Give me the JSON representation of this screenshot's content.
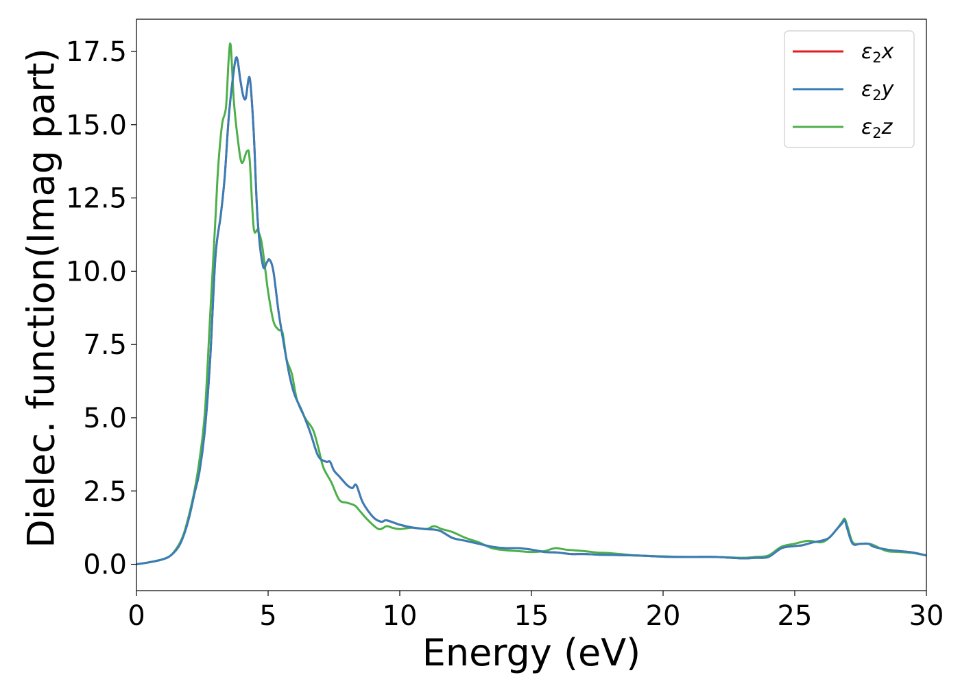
{
  "chart_data": {
    "type": "line",
    "title": "",
    "xlabel": "Energy (eV)",
    "ylabel": "Dielec. function(Imag part)",
    "xlim": [
      0,
      30
    ],
    "ylim": [
      -0.9,
      18.6
    ],
    "xticks": [
      "0",
      "5",
      "10",
      "15",
      "20",
      "25",
      "30"
    ],
    "yticks": [
      "0.0",
      "2.5",
      "5.0",
      "7.5",
      "10.0",
      "12.5",
      "15.0",
      "17.5"
    ],
    "grid": false,
    "legend_position": "top-right",
    "series": [
      {
        "name": "ε₂x",
        "legend_base": "ε",
        "legend_sub": "2",
        "legend_var": "x",
        "color": "#e41a1c",
        "x": [
          0,
          0.5,
          1.0,
          1.3,
          1.6,
          1.8,
          2.0,
          2.2,
          2.4,
          2.6,
          2.8,
          3.0,
          3.2,
          3.35,
          3.5,
          3.65,
          3.8,
          3.95,
          4.05,
          4.15,
          4.3,
          4.45,
          4.6,
          4.8,
          4.95,
          5.05,
          5.2,
          5.4,
          5.6,
          5.8,
          6.0,
          6.3,
          6.6,
          6.9,
          7.2,
          7.35,
          7.5,
          7.7,
          8.0,
          8.2,
          8.35,
          8.6,
          9.0,
          9.3,
          9.5,
          10.0,
          10.5,
          11.0,
          11.5,
          12.0,
          12.5,
          13.0,
          13.5,
          14.0,
          14.5,
          15.0,
          15.5,
          16.0,
          16.5,
          17.0,
          17.5,
          18.0,
          19.0,
          20.0,
          21.0,
          22.0,
          23.0,
          23.5,
          24.0,
          24.5,
          25.0,
          25.3,
          25.7,
          26.0,
          26.3,
          26.6,
          26.8,
          26.9,
          27.0,
          27.2,
          27.5,
          27.8,
          28.0,
          28.5,
          29.0,
          29.5,
          30.0
        ],
        "y": [
          0.0,
          0.07,
          0.17,
          0.3,
          0.6,
          1.0,
          1.6,
          2.4,
          3.2,
          4.6,
          7.0,
          10.5,
          11.9,
          13.2,
          15.2,
          16.5,
          17.3,
          16.5,
          16.0,
          15.9,
          16.6,
          14.8,
          11.8,
          10.2,
          10.3,
          10.4,
          10.0,
          8.6,
          7.5,
          6.5,
          5.8,
          5.2,
          4.5,
          3.7,
          3.5,
          3.5,
          3.2,
          3.0,
          2.7,
          2.6,
          2.7,
          2.1,
          1.6,
          1.45,
          1.5,
          1.35,
          1.25,
          1.2,
          1.15,
          0.9,
          0.8,
          0.7,
          0.6,
          0.55,
          0.55,
          0.5,
          0.42,
          0.4,
          0.35,
          0.35,
          0.33,
          0.32,
          0.3,
          0.26,
          0.25,
          0.25,
          0.2,
          0.22,
          0.25,
          0.55,
          0.62,
          0.65,
          0.75,
          0.8,
          0.9,
          1.2,
          1.4,
          1.5,
          1.2,
          0.7,
          0.7,
          0.7,
          0.6,
          0.5,
          0.45,
          0.4,
          0.3
        ]
      },
      {
        "name": "ε₂y",
        "legend_base": "ε",
        "legend_sub": "2",
        "legend_var": "y",
        "color": "#377eb8",
        "x": [
          0,
          0.5,
          1.0,
          1.3,
          1.6,
          1.8,
          2.0,
          2.2,
          2.4,
          2.6,
          2.8,
          3.0,
          3.2,
          3.35,
          3.5,
          3.65,
          3.8,
          3.95,
          4.05,
          4.15,
          4.3,
          4.45,
          4.6,
          4.8,
          4.95,
          5.05,
          5.2,
          5.4,
          5.6,
          5.8,
          6.0,
          6.3,
          6.6,
          6.9,
          7.2,
          7.35,
          7.5,
          7.7,
          8.0,
          8.2,
          8.35,
          8.6,
          9.0,
          9.3,
          9.5,
          10.0,
          10.5,
          11.0,
          11.5,
          12.0,
          12.5,
          13.0,
          13.5,
          14.0,
          14.5,
          15.0,
          15.5,
          16.0,
          16.5,
          17.0,
          17.5,
          18.0,
          19.0,
          20.0,
          21.0,
          22.0,
          23.0,
          23.5,
          24.0,
          24.5,
          25.0,
          25.3,
          25.7,
          26.0,
          26.3,
          26.6,
          26.8,
          26.9,
          27.0,
          27.2,
          27.5,
          27.8,
          28.0,
          28.5,
          29.0,
          29.5,
          30.0
        ],
        "y": [
          0.0,
          0.07,
          0.17,
          0.3,
          0.6,
          1.0,
          1.6,
          2.4,
          3.2,
          4.6,
          7.0,
          10.5,
          11.9,
          13.2,
          15.2,
          16.5,
          17.3,
          16.5,
          16.0,
          15.9,
          16.6,
          14.8,
          11.8,
          10.2,
          10.3,
          10.4,
          10.0,
          8.6,
          7.5,
          6.5,
          5.8,
          5.2,
          4.5,
          3.7,
          3.5,
          3.5,
          3.2,
          3.0,
          2.7,
          2.6,
          2.7,
          2.1,
          1.6,
          1.45,
          1.5,
          1.35,
          1.25,
          1.2,
          1.15,
          0.9,
          0.8,
          0.7,
          0.6,
          0.55,
          0.55,
          0.5,
          0.42,
          0.4,
          0.35,
          0.35,
          0.33,
          0.32,
          0.3,
          0.26,
          0.25,
          0.25,
          0.2,
          0.22,
          0.25,
          0.55,
          0.62,
          0.65,
          0.75,
          0.8,
          0.9,
          1.2,
          1.4,
          1.5,
          1.2,
          0.7,
          0.7,
          0.7,
          0.6,
          0.5,
          0.45,
          0.4,
          0.3
        ]
      },
      {
        "name": "ε₂z",
        "legend_base": "ε",
        "legend_sub": "2",
        "legend_var": "z",
        "color": "#4daf4a",
        "x": [
          0,
          0.5,
          1.0,
          1.3,
          1.6,
          1.8,
          2.0,
          2.2,
          2.4,
          2.6,
          2.8,
          3.0,
          3.1,
          3.25,
          3.4,
          3.5,
          3.58,
          3.7,
          3.85,
          4.0,
          4.2,
          4.3,
          4.45,
          4.6,
          4.75,
          4.9,
          5.0,
          5.2,
          5.4,
          5.55,
          5.7,
          5.9,
          6.1,
          6.4,
          6.7,
          6.9,
          7.1,
          7.4,
          7.7,
          8.0,
          8.3,
          8.5,
          8.8,
          9.2,
          9.5,
          9.7,
          10.0,
          10.5,
          11.0,
          11.3,
          11.6,
          12.0,
          12.5,
          13.0,
          13.5,
          14.0,
          14.5,
          15.0,
          15.5,
          15.9,
          16.3,
          17.0,
          17.5,
          18.0,
          19.0,
          20.0,
          21.0,
          22.0,
          23.0,
          23.5,
          24.0,
          24.5,
          25.0,
          25.5,
          26.0,
          26.3,
          26.6,
          26.8,
          26.9,
          27.0,
          27.2,
          27.5,
          27.8,
          28.0,
          28.5,
          29.0,
          29.5,
          30.0
        ],
        "y": [
          0.0,
          0.07,
          0.17,
          0.3,
          0.65,
          1.05,
          1.7,
          2.5,
          3.6,
          5.2,
          8.5,
          11.8,
          13.5,
          15.0,
          15.6,
          17.2,
          17.7,
          15.8,
          14.5,
          13.7,
          14.1,
          13.8,
          11.5,
          11.4,
          11.0,
          10.0,
          9.3,
          8.3,
          8.0,
          7.9,
          7.0,
          6.5,
          5.6,
          5.0,
          4.6,
          4.0,
          3.3,
          2.8,
          2.2,
          2.1,
          2.0,
          1.8,
          1.5,
          1.2,
          1.3,
          1.25,
          1.2,
          1.25,
          1.2,
          1.3,
          1.2,
          1.1,
          0.9,
          0.75,
          0.55,
          0.48,
          0.45,
          0.42,
          0.45,
          0.55,
          0.5,
          0.45,
          0.4,
          0.38,
          0.3,
          0.27,
          0.25,
          0.25,
          0.22,
          0.25,
          0.3,
          0.6,
          0.7,
          0.8,
          0.75,
          0.9,
          1.2,
          1.45,
          1.55,
          1.3,
          0.75,
          0.7,
          0.7,
          0.65,
          0.45,
          0.42,
          0.38,
          0.3
        ]
      }
    ]
  }
}
